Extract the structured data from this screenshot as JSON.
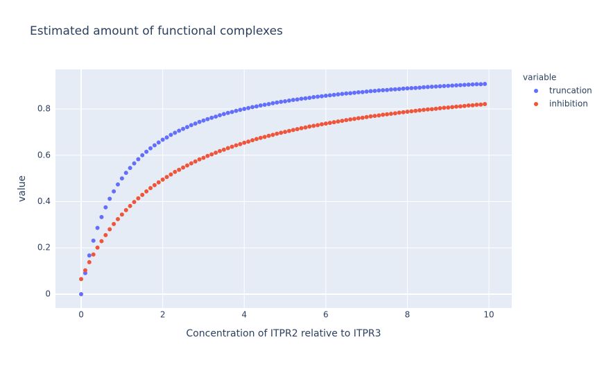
{
  "chart_data": {
    "type": "scatter",
    "title": "Estimated amount of functional complexes",
    "x_label": "Concentration of ITPR2 relative to ITPR3",
    "y_label": "value",
    "legend_title": "variable",
    "x": [
      0,
      0.1,
      0.2,
      0.3,
      0.4,
      0.5,
      0.6,
      0.7,
      0.8,
      0.9,
      1,
      1.1,
      1.2,
      1.3,
      1.4,
      1.5,
      1.6,
      1.7,
      1.8,
      1.9,
      2,
      2.1,
      2.2,
      2.3,
      2.4,
      2.5,
      2.6,
      2.7,
      2.8,
      2.9,
      3,
      3.1,
      3.2,
      3.3,
      3.4,
      3.5,
      3.6,
      3.7,
      3.8,
      3.9,
      4,
      4.1,
      4.2,
      4.3,
      4.4,
      4.5,
      4.6,
      4.7,
      4.8,
      4.9,
      5,
      5.1,
      5.2,
      5.3,
      5.4,
      5.5,
      5.6,
      5.7,
      5.8,
      5.9,
      6,
      6.1,
      6.2,
      6.3,
      6.4,
      6.5,
      6.6,
      6.7,
      6.8,
      6.9,
      7,
      7.1,
      7.2,
      7.3,
      7.4,
      7.5,
      7.6,
      7.7,
      7.8,
      7.9,
      8,
      8.1,
      8.2,
      8.3,
      8.4,
      8.5,
      8.6,
      8.7,
      8.8,
      8.9,
      9,
      9.1,
      9.2,
      9.3,
      9.4,
      9.5,
      9.6,
      9.7,
      9.8,
      9.9
    ],
    "series": [
      {
        "name": "truncation",
        "color": "#636efa",
        "values": [
          0,
          0.091,
          0.167,
          0.231,
          0.286,
          0.333,
          0.375,
          0.412,
          0.444,
          0.474,
          0.5,
          0.524,
          0.545,
          0.565,
          0.583,
          0.6,
          0.615,
          0.63,
          0.643,
          0.655,
          0.667,
          0.677,
          0.688,
          0.697,
          0.706,
          0.714,
          0.722,
          0.73,
          0.737,
          0.744,
          0.75,
          0.756,
          0.762,
          0.767,
          0.773,
          0.778,
          0.783,
          0.787,
          0.792,
          0.796,
          0.8,
          0.804,
          0.808,
          0.811,
          0.815,
          0.818,
          0.821,
          0.825,
          0.828,
          0.831,
          0.833,
          0.836,
          0.839,
          0.841,
          0.844,
          0.846,
          0.848,
          0.851,
          0.853,
          0.855,
          0.857,
          0.859,
          0.861,
          0.863,
          0.865,
          0.867,
          0.868,
          0.87,
          0.872,
          0.873,
          0.875,
          0.877,
          0.878,
          0.88,
          0.881,
          0.882,
          0.884,
          0.885,
          0.886,
          0.888,
          0.889,
          0.89,
          0.891,
          0.892,
          0.894,
          0.895,
          0.896,
          0.897,
          0.898,
          0.899,
          0.9,
          0.901,
          0.902,
          0.903,
          0.904,
          0.905,
          0.906,
          0.907,
          0.907,
          0.908
        ]
      },
      {
        "name": "inhibition",
        "color": "#ef553b",
        "values": [
          0.065,
          0.103,
          0.138,
          0.171,
          0.201,
          0.229,
          0.255,
          0.28,
          0.303,
          0.324,
          0.344,
          0.363,
          0.381,
          0.398,
          0.414,
          0.429,
          0.444,
          0.458,
          0.471,
          0.483,
          0.495,
          0.506,
          0.517,
          0.528,
          0.537,
          0.547,
          0.556,
          0.565,
          0.573,
          0.582,
          0.589,
          0.597,
          0.604,
          0.611,
          0.618,
          0.624,
          0.631,
          0.637,
          0.643,
          0.648,
          0.654,
          0.659,
          0.665,
          0.67,
          0.675,
          0.679,
          0.684,
          0.688,
          0.693,
          0.697,
          0.701,
          0.705,
          0.709,
          0.713,
          0.717,
          0.72,
          0.724,
          0.727,
          0.73,
          0.734,
          0.737,
          0.74,
          0.743,
          0.746,
          0.749,
          0.752,
          0.755,
          0.757,
          0.76,
          0.762,
          0.765,
          0.768,
          0.77,
          0.772,
          0.775,
          0.777,
          0.779,
          0.781,
          0.784,
          0.786,
          0.788,
          0.79,
          0.792,
          0.794,
          0.796,
          0.798,
          0.799,
          0.801,
          0.803,
          0.805,
          0.806,
          0.808,
          0.81,
          0.811,
          0.813,
          0.815,
          0.816,
          0.818,
          0.819,
          0.821
        ]
      }
    ],
    "xlim": [
      -0.63,
      10.56
    ],
    "ylim": [
      -0.06,
      0.971
    ],
    "xticks": [
      0,
      2,
      4,
      6,
      8,
      10
    ],
    "yticks": [
      0,
      0.2,
      0.4,
      0.6,
      0.8
    ],
    "grid": true
  }
}
